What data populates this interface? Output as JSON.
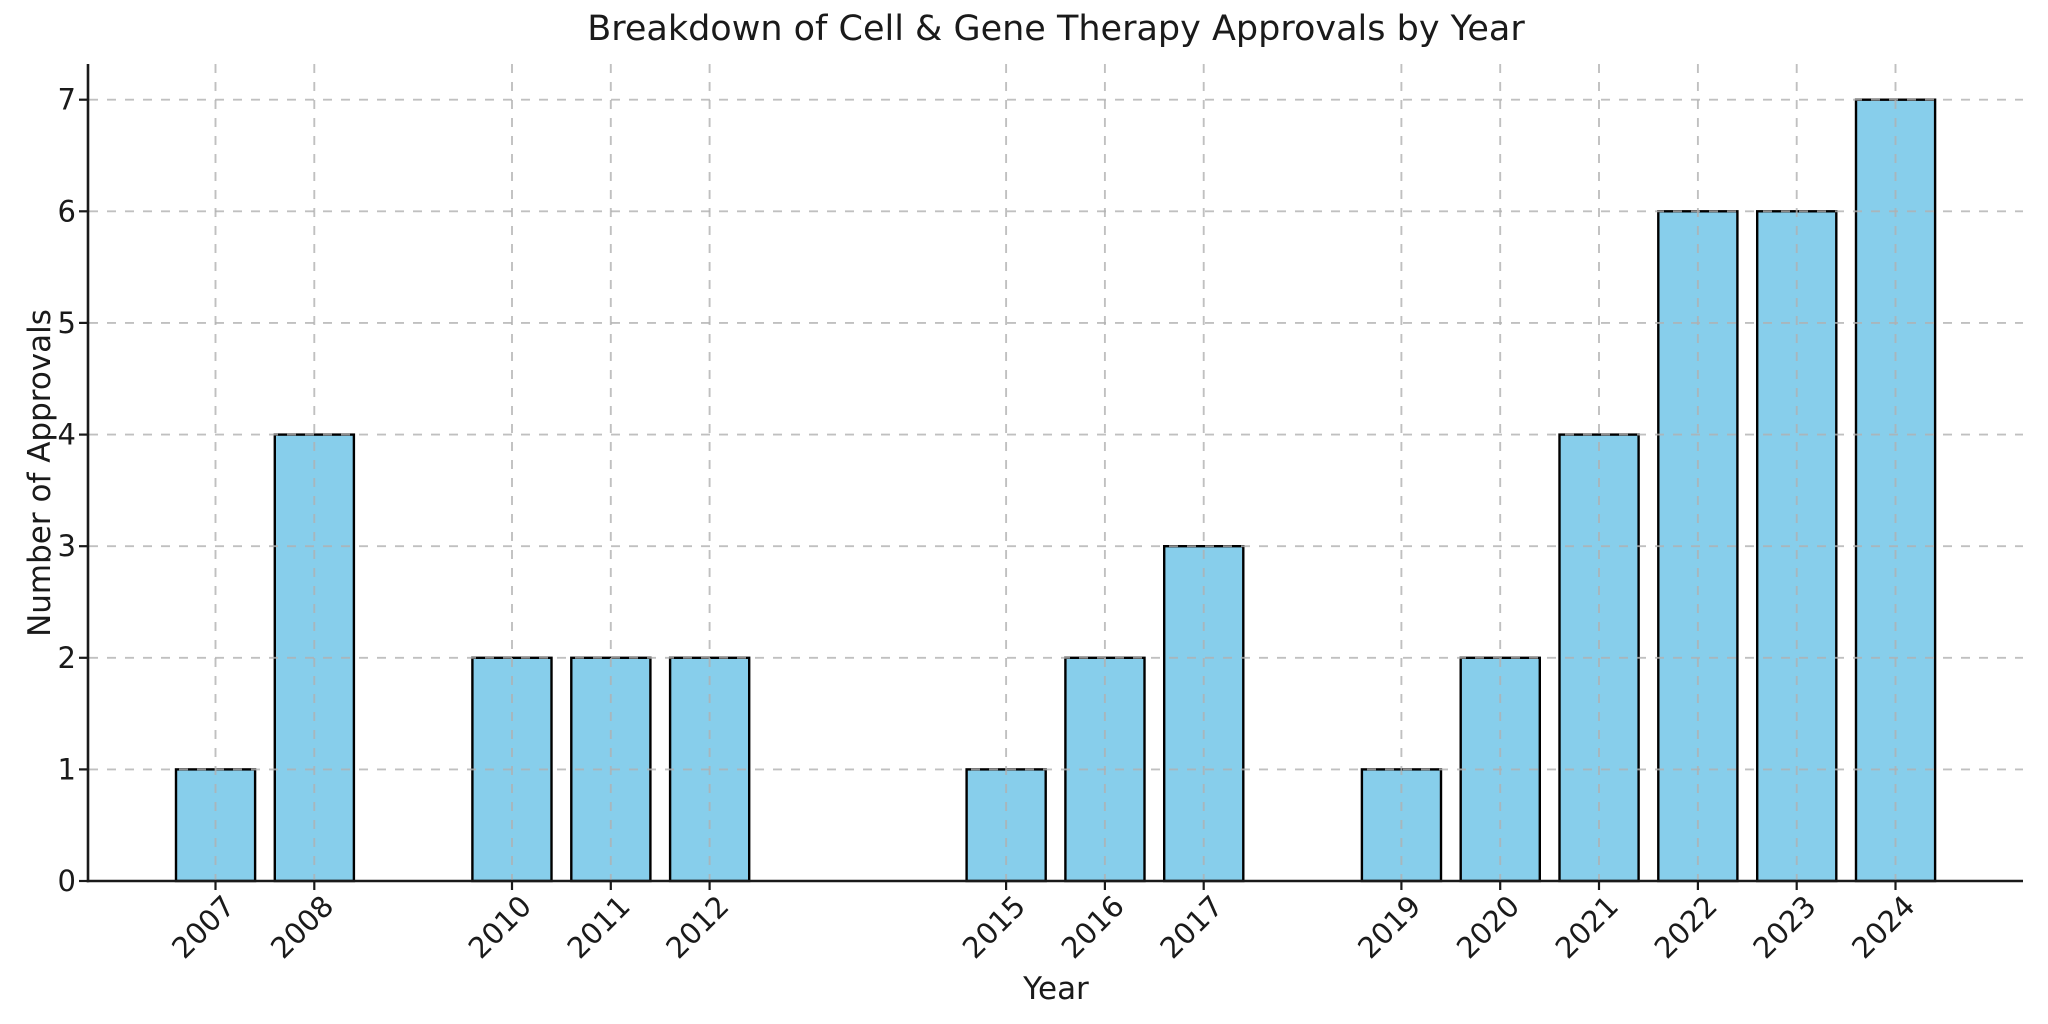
{
  "chart_data": {
    "type": "bar",
    "title": "Breakdown of Cell & Gene Therapy Approvals by Year",
    "xlabel": "Year",
    "ylabel": "Number of Approvals",
    "categories": [
      "2007",
      "2008",
      "2010",
      "2011",
      "2012",
      "2015",
      "2016",
      "2017",
      "2019",
      "2020",
      "2021",
      "2022",
      "2023",
      "2024"
    ],
    "values": [
      1,
      4,
      2,
      2,
      2,
      1,
      2,
      3,
      1,
      2,
      4,
      6,
      6,
      7
    ],
    "yticks": [
      "0",
      "1",
      "2",
      "3",
      "4",
      "5",
      "6",
      "7"
    ],
    "ylim": [
      0,
      7.32
    ],
    "xlim": [
      2005.71,
      2025.29
    ],
    "bar_width_years": 0.8,
    "grid": "dashed, both axes, drawn above bars",
    "legend_position": "none",
    "tick_label_rotation_deg": 45,
    "colors": {
      "bar_fill": "#87CEEB",
      "bar_edge": "#000000",
      "grid": "#b0b0b0",
      "axis": "#1a1a1a",
      "text": "#1a1a1a",
      "background": "#ffffff"
    }
  }
}
